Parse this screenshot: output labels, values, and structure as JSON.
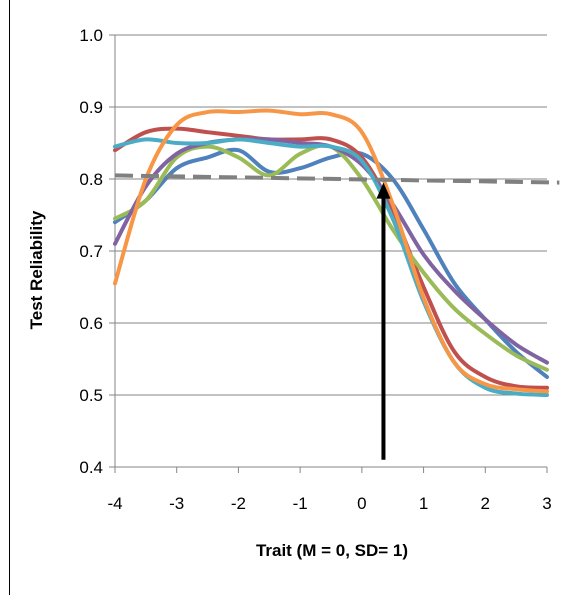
{
  "chart_data": {
    "type": "line",
    "title": "",
    "xlabel": "Trait (M = 0, SD= 1)",
    "ylabel": "Test Reliability",
    "xlim": [
      -4,
      3
    ],
    "ylim": [
      0.4,
      1.0
    ],
    "x_ticks": [
      "-4",
      "-3",
      "-2",
      "-1",
      "0",
      "1",
      "2",
      "3"
    ],
    "y_ticks": [
      "0.4",
      "0.5",
      "0.6",
      "0.7",
      "0.8",
      "0.9",
      "1.0"
    ],
    "grid": "horizontal",
    "legend": "none",
    "series": [
      {
        "color": "#4F81BD",
        "x": [
          -4,
          -3.5,
          -3,
          -2.5,
          -2,
          -1.5,
          -1,
          -0.5,
          0,
          0.5,
          1,
          1.5,
          2,
          2.5,
          3
        ],
        "y": [
          0.74,
          0.77,
          0.815,
          0.83,
          0.84,
          0.81,
          0.815,
          0.83,
          0.835,
          0.8,
          0.73,
          0.655,
          0.605,
          0.56,
          0.525
        ]
      },
      {
        "color": "#C0504D",
        "x": [
          -4,
          -3.5,
          -3,
          -2.5,
          -2,
          -1.5,
          -1,
          -0.5,
          0,
          0.5,
          1,
          1.5,
          2,
          2.5,
          3
        ],
        "y": [
          0.84,
          0.865,
          0.87,
          0.865,
          0.86,
          0.855,
          0.855,
          0.855,
          0.83,
          0.755,
          0.65,
          0.56,
          0.525,
          0.512,
          0.51
        ]
      },
      {
        "color": "#9BBB59",
        "x": [
          -4,
          -3.5,
          -3,
          -2.5,
          -2,
          -1.5,
          -1,
          -0.5,
          0,
          0.5,
          1,
          1.5,
          2,
          2.5,
          3
        ],
        "y": [
          0.745,
          0.77,
          0.83,
          0.845,
          0.83,
          0.805,
          0.835,
          0.845,
          0.8,
          0.73,
          0.67,
          0.62,
          0.585,
          0.555,
          0.535
        ]
      },
      {
        "color": "#8064A2",
        "x": [
          -4,
          -3.5,
          -3,
          -2.5,
          -2,
          -1.5,
          -1,
          -0.5,
          0,
          0.5,
          1,
          1.5,
          2,
          2.5,
          3
        ],
        "y": [
          0.71,
          0.79,
          0.835,
          0.85,
          0.855,
          0.855,
          0.85,
          0.845,
          0.82,
          0.765,
          0.695,
          0.645,
          0.605,
          0.57,
          0.545
        ]
      },
      {
        "color": "#4BACC6",
        "x": [
          -4,
          -3.5,
          -3,
          -2.5,
          -2,
          -1.5,
          -1,
          -0.5,
          0,
          0.5,
          1,
          1.5,
          2,
          2.5,
          3
        ],
        "y": [
          0.845,
          0.855,
          0.85,
          0.85,
          0.855,
          0.85,
          0.845,
          0.845,
          0.825,
          0.745,
          0.63,
          0.545,
          0.51,
          0.502,
          0.5
        ]
      },
      {
        "color": "#F79646",
        "x": [
          -4,
          -3.5,
          -3,
          -2.5,
          -2,
          -1.5,
          -1,
          -0.5,
          0,
          0.5,
          1,
          1.5,
          2,
          2.5,
          3
        ],
        "y": [
          0.655,
          0.8,
          0.875,
          0.893,
          0.893,
          0.895,
          0.89,
          0.89,
          0.865,
          0.765,
          0.635,
          0.545,
          0.515,
          0.508,
          0.505
        ]
      }
    ],
    "reference_line": {
      "color": "#808080",
      "style": "dashed",
      "x": [
        -4,
        3.2
      ],
      "y": [
        0.805,
        0.795
      ]
    },
    "annotation_arrow": {
      "color": "#000000",
      "x": 0.35,
      "y_from": 0.41,
      "y_to": 0.795
    }
  }
}
